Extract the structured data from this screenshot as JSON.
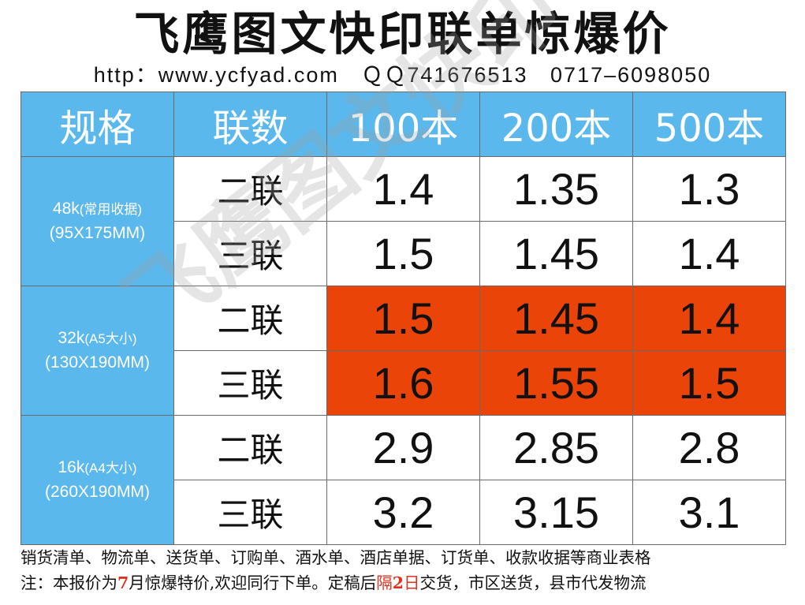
{
  "title": "飞鹰图文快印联单惊爆价",
  "contact": {
    "url": "http：www.ycfyad.com",
    "qq": "ＱＱ741676513",
    "phone": "0717–6098050"
  },
  "table": {
    "headers": [
      "规格",
      "联数",
      "100本",
      "200本",
      "500本"
    ],
    "groups": [
      {
        "size": "48k",
        "desc": "(常用收据)",
        "dims": "(95X175MM)",
        "rows": [
          {
            "copies": "二联",
            "prices": [
              "1.4",
              "1.35",
              "1.3"
            ]
          },
          {
            "copies": "三联",
            "prices": [
              "1.5",
              "1.45",
              "1.4"
            ]
          }
        ]
      },
      {
        "size": "32k",
        "desc": "(A5大小)",
        "dims": "(130X190MM)",
        "highlight_color": "#ea4409",
        "rows": [
          {
            "copies": "二联",
            "prices": [
              "1.5",
              "1.45",
              "1.4"
            ]
          },
          {
            "copies": "三联",
            "prices": [
              "1.6",
              "1.55",
              "1.5"
            ]
          }
        ]
      },
      {
        "size": "16k",
        "desc": "(A4大小)",
        "dims": "(260X190MM)",
        "rows": [
          {
            "copies": "二联",
            "prices": [
              "2.9",
              "2.85",
              "2.8"
            ]
          },
          {
            "copies": "三联",
            "prices": [
              "3.2",
              "3.15",
              "3.1"
            ]
          }
        ]
      }
    ]
  },
  "watermark": "飞鹰图文快印",
  "notes": {
    "line1": "销货清单、物流单、送货单、订购单、酒水单、酒店单据、订货单、收款收据等商业表格",
    "line2_a": "注：本报价为",
    "line2_month": "7",
    "line2_b": "月惊爆特价,欢迎同行下单。定稿后",
    "line2_days_a": "隔",
    "line2_days_num": "2",
    "line2_days_b": "日",
    "line2_c": "交货，市区送货，县市代发物流"
  },
  "colors": {
    "header_bg": "#5bb8ec",
    "highlight_bg": "#ea4409",
    "accent_text": "#e0301e"
  }
}
